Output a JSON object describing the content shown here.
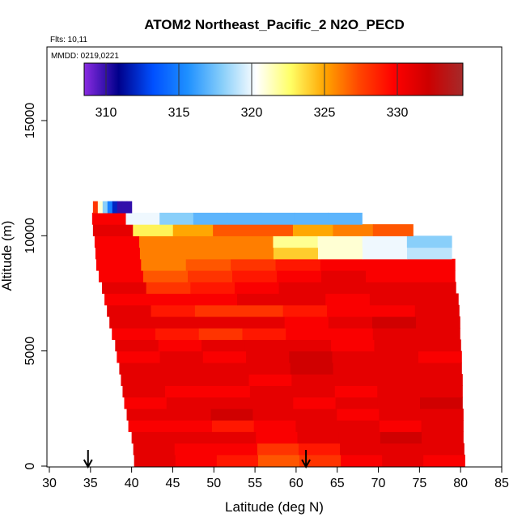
{
  "chart_data": {
    "type": "heatmap",
    "title": "ATOM2 Northeast_Pacific_2 N2O_PECD",
    "flights_label": "Flts: 10,11",
    "dates_label": "MMDD: 0219,0221",
    "xlabel": "Latitude (deg N)",
    "ylabel": "Altitude (m)",
    "xlim": [
      30,
      85
    ],
    "ylim": [
      0,
      17500
    ],
    "x_ticks": [
      30,
      35,
      40,
      45,
      50,
      55,
      60,
      65,
      70,
      75,
      80,
      85
    ],
    "y_ticks": [
      0,
      5000,
      10000,
      15000
    ],
    "colorbar": {
      "range": [
        308.5,
        334.5
      ],
      "ticks": [
        310,
        315,
        320,
        325,
        330
      ],
      "colors": [
        "#8a2be2",
        "#00008b",
        "#0050ff",
        "#1e90ff",
        "#87cefa",
        "#ffffff",
        "#ffff66",
        "#ffa500",
        "#ff4500",
        "#ff0000",
        "#cd0000",
        "#a52a2a"
      ]
    },
    "arrows_latitude": [
      34.7,
      61.2
    ],
    "layers": [
      {
        "alt": 0,
        "west": 40.3,
        "east": 80.5,
        "values": [
          331,
          330,
          329,
          327,
          328,
          330,
          331,
          330
        ]
      },
      {
        "alt": 500,
        "west": 40.2,
        "east": 80.4,
        "values": [
          331,
          330,
          330,
          328,
          329,
          331,
          331,
          331
        ]
      },
      {
        "alt": 1000,
        "west": 40.0,
        "east": 80.3,
        "values": [
          331,
          331,
          331,
          330,
          331,
          331,
          332,
          331
        ]
      },
      {
        "alt": 1500,
        "west": 39.6,
        "east": 80.3,
        "values": [
          330,
          330,
          329,
          330,
          331,
          331,
          330,
          331
        ]
      },
      {
        "alt": 2000,
        "west": 39.4,
        "east": 80.3,
        "values": [
          331,
          331,
          332,
          331,
          331,
          330,
          331,
          331
        ]
      },
      {
        "alt": 2500,
        "west": 39.1,
        "east": 80.2,
        "values": [
          330,
          331,
          331,
          331,
          330,
          331,
          331,
          332
        ]
      },
      {
        "alt": 3000,
        "west": 38.9,
        "east": 80.2,
        "values": [
          331,
          330,
          330,
          331,
          331,
          330,
          331,
          331
        ]
      },
      {
        "alt": 3500,
        "west": 38.7,
        "east": 80.2,
        "values": [
          331,
          331,
          331,
          330,
          331,
          331,
          331,
          331
        ]
      },
      {
        "alt": 4000,
        "west": 38.5,
        "east": 80.1,
        "values": [
          331,
          331,
          331,
          331,
          332,
          331,
          331,
          331
        ]
      },
      {
        "alt": 4500,
        "west": 38.2,
        "east": 80.1,
        "values": [
          330,
          331,
          330,
          331,
          332,
          331,
          331,
          330
        ]
      },
      {
        "alt": 5000,
        "west": 38.0,
        "east": 80.0,
        "values": [
          331,
          330,
          331,
          331,
          331,
          330,
          331,
          331
        ]
      },
      {
        "alt": 5500,
        "west": 37.6,
        "east": 79.9,
        "values": [
          330,
          329,
          328,
          329,
          330,
          330,
          331,
          331
        ]
      },
      {
        "alt": 6000,
        "west": 37.3,
        "east": 79.9,
        "values": [
          331,
          331,
          331,
          331,
          330,
          331,
          332,
          331
        ]
      },
      {
        "alt": 6500,
        "west": 37.0,
        "east": 79.8,
        "values": [
          331,
          329,
          328,
          328,
          329,
          330,
          330,
          331
        ]
      },
      {
        "alt": 7000,
        "west": 36.7,
        "east": 79.7,
        "values": [
          330,
          330,
          330,
          331,
          331,
          330,
          331,
          331
        ]
      },
      {
        "alt": 7500,
        "west": 36.4,
        "east": 79.4,
        "values": [
          331,
          328,
          329,
          330,
          331,
          331,
          331,
          331
        ]
      },
      {
        "alt": 8000,
        "west": 36.0,
        "east": 79.3,
        "values": [
          330,
          327,
          328,
          329,
          330,
          331,
          330,
          330
        ]
      },
      {
        "alt": 8500,
        "west": 35.7,
        "east": 79.3,
        "values": [
          330,
          326,
          327,
          328,
          329,
          330,
          330,
          330
        ]
      },
      {
        "alt": 9000,
        "west": 35.6,
        "east": 78.9,
        "values": [
          330,
          326,
          326,
          326,
          324,
          321,
          320,
          319
        ]
      },
      {
        "alt": 9500,
        "west": 35.5,
        "east": 78.9,
        "values": [
          330,
          326,
          326,
          326,
          322,
          321,
          320,
          318
        ]
      },
      {
        "alt": 10000,
        "west": 35.3,
        "east": 74.2,
        "values": [
          331,
          323,
          325,
          327,
          327,
          325,
          326,
          327
        ]
      },
      {
        "alt": 10500,
        "west": 35.2,
        "east": 68.0,
        "values": [
          330,
          320,
          318,
          317,
          317,
          317,
          317,
          317
        ]
      },
      {
        "alt": 11000,
        "west": 35.3,
        "east": 40.0,
        "values": [
          328,
          321,
          318,
          315,
          312,
          310,
          310,
          310
        ]
      }
    ]
  }
}
